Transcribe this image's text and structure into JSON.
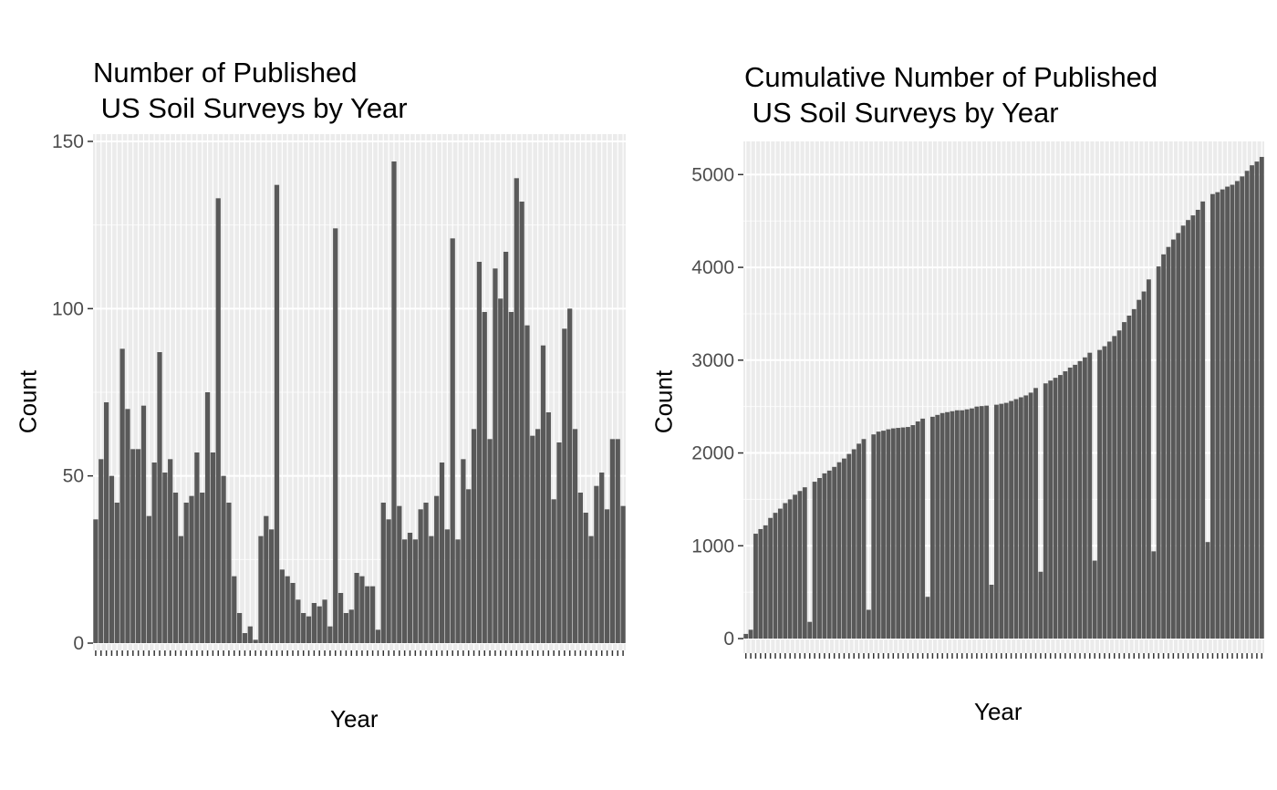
{
  "chart_data": [
    {
      "type": "bar",
      "title": "Number of Published\n US Soil Surveys by Year",
      "xlabel": "Year",
      "ylabel": "Count",
      "ylim": [
        0,
        150
      ],
      "yticks": [
        0,
        50,
        100,
        150
      ],
      "grid": true,
      "bar_color": "#595959",
      "panel_color": "#ebebeb",
      "values": [
        37,
        55,
        72,
        50,
        42,
        88,
        70,
        58,
        58,
        71,
        38,
        54,
        87,
        51,
        55,
        45,
        32,
        42,
        44,
        57,
        45,
        75,
        57,
        133,
        50,
        42,
        20,
        9,
        3,
        5,
        1,
        32,
        38,
        34,
        137,
        22,
        20,
        18,
        13,
        9,
        8,
        12,
        11,
        13,
        5,
        124,
        15,
        9,
        10,
        21,
        20,
        17,
        17,
        4,
        42,
        37,
        144,
        41,
        31,
        33,
        31,
        40,
        42,
        32,
        44,
        54,
        34,
        121,
        31,
        55,
        46,
        64,
        114,
        99,
        61,
        112,
        103,
        117,
        99,
        139,
        132,
        95,
        62,
        64,
        89,
        69,
        43,
        60,
        94,
        100,
        64,
        45,
        39,
        32,
        47,
        51,
        40,
        61,
        61,
        41
      ]
    },
    {
      "type": "bar",
      "title": "Cumulative Number of Published\n US Soil Surveys by Year",
      "xlabel": "Year",
      "ylabel": "Count",
      "ylim": [
        0,
        5200
      ],
      "yticks": [
        0,
        1000,
        2000,
        3000,
        4000,
        5000
      ],
      "grid": true,
      "bar_color": "#595959",
      "panel_color": "#ebebeb",
      "values": [
        50,
        95,
        1130,
        1180,
        1220,
        1300,
        1355,
        1400,
        1460,
        1500,
        1550,
        1590,
        1630,
        180,
        1690,
        1730,
        1780,
        1810,
        1850,
        1900,
        1940,
        1990,
        2040,
        2100,
        2150,
        310,
        2200,
        2230,
        2240,
        2255,
        2265,
        2270,
        2275,
        2280,
        2300,
        2340,
        2370,
        450,
        2390,
        2410,
        2430,
        2440,
        2450,
        2460,
        2460,
        2470,
        2480,
        2500,
        2505,
        2510,
        580,
        2520,
        2530,
        2540,
        2560,
        2580,
        2600,
        2620,
        2650,
        2700,
        720,
        2750,
        2780,
        2810,
        2840,
        2880,
        2920,
        2950,
        2990,
        3030,
        3080,
        840,
        3110,
        3150,
        3200,
        3260,
        3320,
        3410,
        3480,
        3550,
        3650,
        3740,
        3870,
        940,
        4010,
        4140,
        4220,
        4300,
        4370,
        4450,
        4510,
        4560,
        4620,
        4710,
        1040,
        4790,
        4810,
        4840,
        4870,
        4890,
        4930,
        4980,
        5040,
        5100,
        5140,
        5190
      ]
    }
  ]
}
